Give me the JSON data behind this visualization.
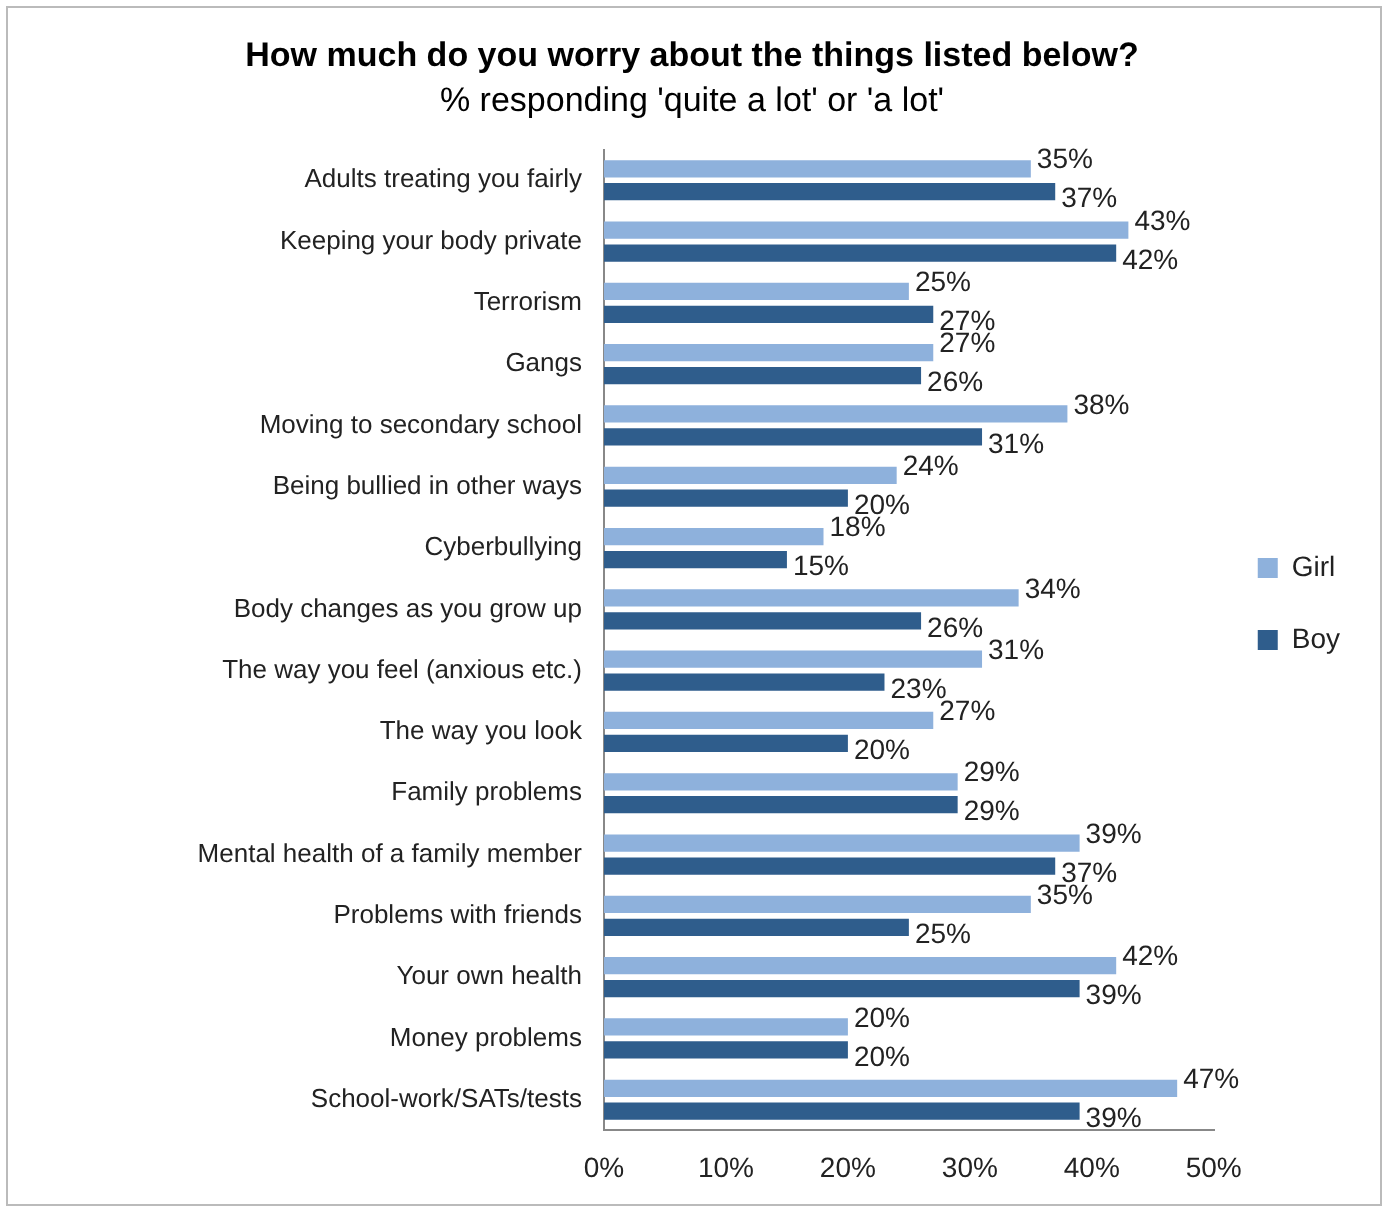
{
  "chart_data": {
    "type": "bar",
    "orientation": "horizontal",
    "title": "How much do you worry about the things listed below?",
    "subtitle": "% responding 'quite a lot' or 'a lot'",
    "categories": [
      "Adults treating you fairly",
      "Keeping your body private",
      "Terrorism",
      "Gangs",
      "Moving to secondary school",
      "Being bullied in other ways",
      "Cyberbullying",
      "Body changes as you grow up",
      "The way you feel (anxious etc.)",
      "The way you look",
      "Family problems",
      "Mental health of a family member",
      "Problems with friends",
      "Your own health",
      "Money problems",
      "School-work/SATs/tests"
    ],
    "series": [
      {
        "name": "Girl",
        "color": "#8eb1dc",
        "values": [
          35,
          43,
          25,
          27,
          38,
          24,
          18,
          34,
          31,
          27,
          29,
          39,
          35,
          42,
          20,
          47
        ],
        "value_labels": [
          "35%",
          "43%",
          "25%",
          "27%",
          "38%",
          "24%",
          "18%",
          "34%",
          "31%",
          "27%",
          "29%",
          "39%",
          "35%",
          "42%",
          "20%",
          "47%"
        ]
      },
      {
        "name": "Boy",
        "color": "#2f5d8c",
        "values": [
          37,
          42,
          27,
          26,
          31,
          20,
          15,
          26,
          23,
          20,
          29,
          37,
          25,
          39,
          20,
          39
        ],
        "value_labels": [
          "37%",
          "42%",
          "27%",
          "26%",
          "31%",
          "20%",
          "15%",
          "26%",
          "23%",
          "20%",
          "29%",
          "37%",
          "25%",
          "39%",
          "20%",
          "39%"
        ]
      }
    ],
    "xlim": [
      0,
      50
    ],
    "xticks": [
      {
        "value": 0,
        "label": "0%"
      },
      {
        "value": 10,
        "label": "10%"
      },
      {
        "value": 20,
        "label": "20%"
      },
      {
        "value": 30,
        "label": "30%"
      },
      {
        "value": 40,
        "label": "40%"
      },
      {
        "value": 50,
        "label": "50%"
      }
    ],
    "grid": false,
    "legend": "right"
  }
}
